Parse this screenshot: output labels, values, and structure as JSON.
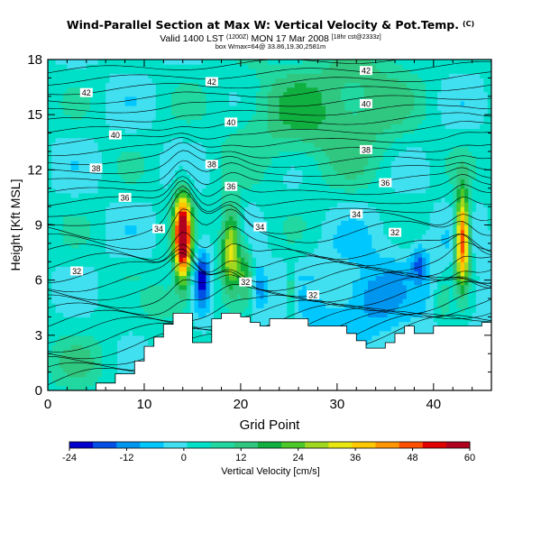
{
  "header": {
    "title": "Wind-Parallel Section at Max W: Vertical Velocity & Pot.Temp.",
    "title_sup": "(C)",
    "subtitle_valid": "Valid 1400 LST",
    "subtitle_valid_small": "(1200Z)",
    "subtitle_date": "MON 17 Mar 2008",
    "subtitle_run": "[18hr cst@2333z]",
    "subtitle_box": "box Wmax=64@ 33.86,19.30,2581m"
  },
  "chart_data": {
    "type": "heatmap",
    "title": "Wind-Parallel Section at Max W: Vertical Velocity & Pot.Temp.",
    "xlabel": "Grid Point",
    "ylabel": "Height [Kft MSL]",
    "xlim": [
      0,
      46
    ],
    "ylim": [
      0,
      18
    ],
    "xticks": [
      0,
      10,
      20,
      30,
      40
    ],
    "yticks": [
      0,
      3,
      6,
      9,
      12,
      15,
      18
    ],
    "colorbar": {
      "label": "Vertical Velocity [cm/s]",
      "ticks": [
        -24,
        -12,
        0,
        12,
        24,
        36,
        48,
        60
      ],
      "range": [
        -24,
        60
      ],
      "colors": [
        "#0000cc",
        "#0050e6",
        "#0096f0",
        "#00c8ff",
        "#40e0f0",
        "#00e0c8",
        "#20d8a0",
        "#30c880",
        "#10b040",
        "#4cc82a",
        "#a0d820",
        "#e8e810",
        "#ffc800",
        "#ff9600",
        "#ff5000",
        "#e00000",
        "#b00020"
      ]
    },
    "isentrope_labels": [
      {
        "value": "42",
        "x": 4,
        "y": 16.2
      },
      {
        "value": "42",
        "x": 17,
        "y": 16.8
      },
      {
        "value": "42",
        "x": 33,
        "y": 17.4
      },
      {
        "value": "40",
        "x": 7,
        "y": 13.9
      },
      {
        "value": "40",
        "x": 19,
        "y": 14.6
      },
      {
        "value": "40",
        "x": 33,
        "y": 15.6
      },
      {
        "value": "38",
        "x": 5,
        "y": 12.1
      },
      {
        "value": "38",
        "x": 17,
        "y": 12.3
      },
      {
        "value": "38",
        "x": 33,
        "y": 13.1
      },
      {
        "value": "36",
        "x": 8,
        "y": 10.5
      },
      {
        "value": "36",
        "x": 19,
        "y": 11.1
      },
      {
        "value": "36",
        "x": 35,
        "y": 11.3
      },
      {
        "value": "34",
        "x": 11.5,
        "y": 8.8
      },
      {
        "value": "34",
        "x": 22,
        "y": 8.9
      },
      {
        "value": "34",
        "x": 32,
        "y": 9.6
      },
      {
        "value": "32",
        "x": 3,
        "y": 6.5
      },
      {
        "value": "32",
        "x": 20.5,
        "y": 5.9
      },
      {
        "value": "32",
        "x": 27.5,
        "y": 5.2
      },
      {
        "value": "32",
        "x": 36,
        "y": 8.6
      }
    ],
    "max_w_cm_s": 64
  }
}
